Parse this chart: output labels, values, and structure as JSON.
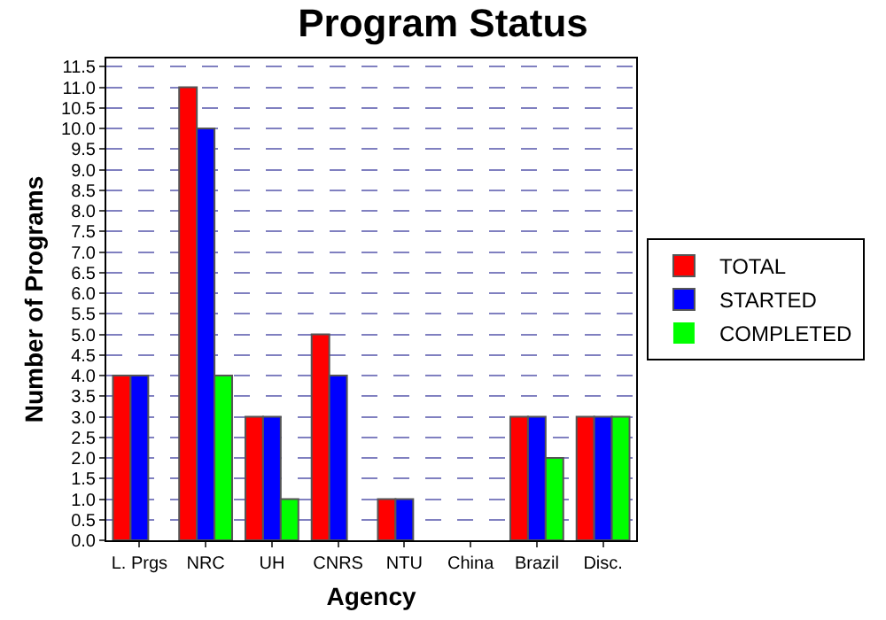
{
  "chart_data": {
    "type": "bar",
    "title": "Program Status",
    "xlabel": "Agency",
    "ylabel": "Number of Programs",
    "categories": [
      "L. Prgs",
      "NRC",
      "UH",
      "CNRS",
      "NTU",
      "China",
      "Brazil",
      "Disc."
    ],
    "series": [
      {
        "name": "TOTAL",
        "color": "#ff0000",
        "values": [
          4,
          11,
          3,
          5,
          1,
          0,
          3,
          3
        ]
      },
      {
        "name": "STARTED",
        "color": "#0000ff",
        "values": [
          4,
          10,
          3,
          4,
          1,
          0,
          3,
          3
        ]
      },
      {
        "name": "COMPLETED",
        "color": "#00ff00",
        "values": [
          0,
          4,
          1,
          0,
          0,
          0,
          2,
          3
        ]
      }
    ],
    "ylim": [
      0,
      11.7
    ],
    "yticks": [
      {
        "value": 0,
        "label": "0.0"
      },
      0.5,
      {
        "value": 1,
        "label": "1.0"
      },
      1.5,
      {
        "value": 2,
        "label": "2.0"
      },
      2.5,
      {
        "value": 3,
        "label": "3.0"
      },
      3.5,
      {
        "value": 4,
        "label": "4.0"
      },
      4.5,
      {
        "value": 5,
        "label": "5.0"
      },
      5.5,
      {
        "value": 6,
        "label": "6.0"
      },
      6.5,
      {
        "value": 7,
        "label": "7.0"
      },
      7.5,
      {
        "value": 8,
        "label": "8.0"
      },
      8.5,
      {
        "value": 9,
        "label": "9.0"
      },
      9.5,
      {
        "value": 10,
        "label": "10.0"
      },
      10.5,
      {
        "value": 11,
        "label": "11.0"
      },
      11.5
    ],
    "grid": "y",
    "legend": "right"
  }
}
